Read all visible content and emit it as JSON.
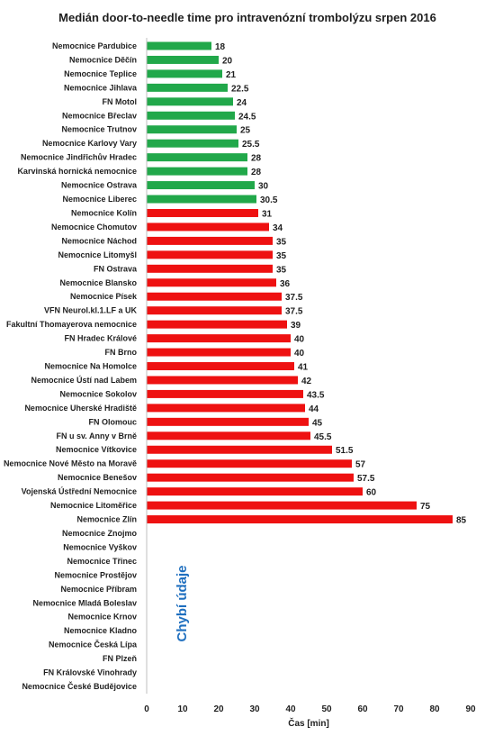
{
  "chart_data": {
    "type": "bar",
    "orientation": "horizontal",
    "title": "Medián door-to-needle time pro intravenózní trombolýzu srpen 2016",
    "xlabel": "Čas [min]",
    "ylabel": "",
    "xlim": [
      0,
      90
    ],
    "xticks": [
      0,
      10,
      20,
      30,
      40,
      50,
      60,
      70,
      80,
      90
    ],
    "grid": false,
    "threshold_note": "green bars ≤ 30.5 min, red bars ≥ 31 min",
    "colors": {
      "green": "#21a84a",
      "red": "#ee1111",
      "missing_text": "#1f6fbf"
    },
    "missing_label": "Chybí údaje",
    "categories": [
      "Nemocnice Pardubice",
      "Nemocnice Děčín",
      "Nemocnice Teplice",
      "Nemocnice Jihlava",
      "FN Motol",
      "Nemocnice Břeclav",
      "Nemocnice Trutnov",
      "Nemocnice Karlovy Vary",
      "Nemocnice Jindřichův Hradec",
      "Karvinská hornická nemocnice",
      "Nemocnice Ostrava",
      "Nemocnice Liberec",
      "Nemocnice Kolín",
      "Nemocnice Chomutov",
      "Nemocnice Náchod",
      "Nemocnice Litomyšl",
      "FN Ostrava",
      "Nemocnice Blansko",
      "Nemocnice Písek",
      "VFN Neurol.kl.1.LF a UK",
      "Fakultní Thomayerova nemocnice",
      "FN Hradec Králové",
      "FN Brno",
      "Nemocnice Na Homolce",
      "Nemocnice Ústí nad Labem",
      "Nemocnice Sokolov",
      "Nemocnice Uherské Hradiště",
      "FN Olomouc",
      "FN u sv. Anny v Brně",
      "Nemocnice Vítkovice",
      "Nemocnice Nové Město na Moravě",
      "Nemocnice Benešov",
      "Vojenská Ústřední Nemocnice",
      "Nemocnice Litoměřice",
      "Nemocnice Zlín",
      "Nemocnice Znojmo",
      "Nemocnice Vyškov",
      "Nemocnice Třinec",
      "Nemocnice Prostějov",
      "Nemocnice Příbram",
      "Nemocnice Mladá Boleslav",
      "Nemocnice Krnov",
      "Nemocnice Kladno",
      "Nemocnice Česká Lípa",
      "FN Plzeň",
      "FN Královské Vinohrady",
      "Nemocnice České Budějovice"
    ],
    "values": [
      18,
      20,
      21,
      22.5,
      24,
      24.5,
      25,
      25.5,
      28,
      28,
      30,
      30.5,
      31,
      34,
      35,
      35,
      35,
      36,
      37.5,
      37.5,
      39,
      40,
      40,
      41,
      42,
      43.5,
      44,
      45,
      45.5,
      51.5,
      57,
      57.5,
      60,
      75,
      85,
      null,
      null,
      null,
      null,
      null,
      null,
      null,
      null,
      null,
      null,
      null,
      null
    ],
    "bar_color": [
      "green",
      "green",
      "green",
      "green",
      "green",
      "green",
      "green",
      "green",
      "green",
      "green",
      "green",
      "green",
      "red",
      "red",
      "red",
      "red",
      "red",
      "red",
      "red",
      "red",
      "red",
      "red",
      "red",
      "red",
      "red",
      "red",
      "red",
      "red",
      "red",
      "red",
      "red",
      "red",
      "red",
      "red",
      "red",
      null,
      null,
      null,
      null,
      null,
      null,
      null,
      null,
      null,
      null,
      null,
      null
    ]
  }
}
